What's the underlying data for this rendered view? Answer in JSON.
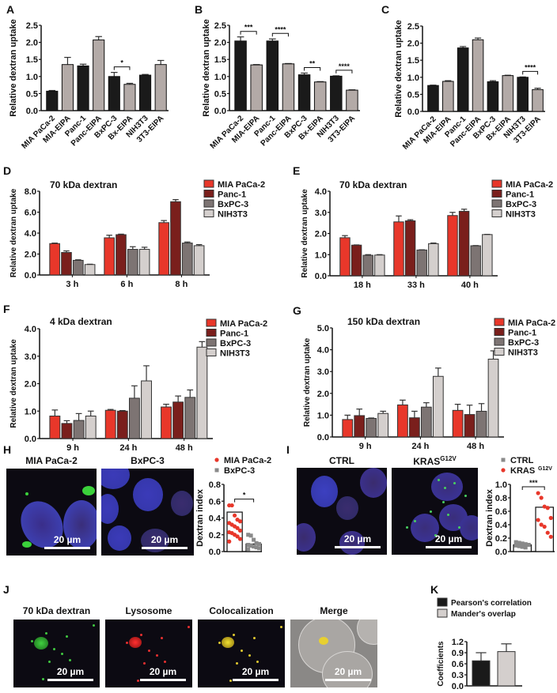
{
  "panel_labels": {
    "A": "A",
    "B": "B",
    "C": "C",
    "D": "D",
    "E": "E",
    "F": "F",
    "G": "G",
    "H": "H",
    "I": "I",
    "J": "J",
    "K": "K"
  },
  "colors": {
    "black": "#1a1a1a",
    "grey": "#b3aaa7",
    "mia": "#e8372a",
    "panc": "#7a1f1c",
    "bxpc": "#7d7473",
    "nih": "#d4cfcd",
    "dot_red": "#e8372a",
    "dot_grey": "#8a8a8a"
  },
  "micrographs": {
    "H": {
      "titles": [
        "MIA PaCa-2",
        "BxPC-3"
      ],
      "scale": "20 µm"
    },
    "I": {
      "titles": [
        "CTRL",
        "KRAS",
        "G12V"
      ],
      "scale": "20 µm"
    },
    "J": {
      "titles": [
        "70 kDa dextran",
        "Lysosome",
        "Colocalization",
        "Merge"
      ],
      "scale": "20 µm"
    }
  },
  "chart_data": [
    {
      "id": "A",
      "type": "bar",
      "ylabel": "Relative dextran uptake",
      "ylim": [
        0,
        2.5
      ],
      "yticks": [
        "0.0",
        "0.5",
        "1.0",
        "1.5",
        "2.0",
        "2.5"
      ],
      "categories": [
        "MIA PaCa-2",
        "MIA-EIPA",
        "Panc-1",
        "Panc-EIPA",
        "BxPC-3",
        "Bx-EIPA",
        "NIH3T3",
        "3T3-EIPA"
      ],
      "values": [
        0.57,
        1.35,
        1.31,
        2.07,
        1.0,
        0.77,
        1.04,
        1.35
      ],
      "errors": [
        0.02,
        0.21,
        0.05,
        0.1,
        0.12,
        0.03,
        0.02,
        0.12
      ],
      "significance": [
        {
          "between": [
            4,
            5
          ],
          "label": "*"
        }
      ]
    },
    {
      "id": "B",
      "type": "bar",
      "ylabel": "Relative dextran uptake",
      "ylim": [
        0,
        2.5
      ],
      "yticks": [
        "0.0",
        "0.5",
        "1.0",
        "1.5",
        "2.0",
        "2.5"
      ],
      "categories": [
        "MIA PaCa-2",
        "MIA-EIPA",
        "Panc-1",
        "Panc-EIPA",
        "BxPC-3",
        "Bx-EIPA",
        "NIH3T3",
        "3T3-EIPA"
      ],
      "values": [
        2.04,
        1.34,
        2.04,
        1.37,
        1.05,
        0.84,
        1.01,
        0.6
      ],
      "errors": [
        0.12,
        0.01,
        0.06,
        0.01,
        0.05,
        0.01,
        0.01,
        0.01
      ],
      "significance": [
        {
          "between": [
            0,
            1
          ],
          "label": "***"
        },
        {
          "between": [
            2,
            3
          ],
          "label": "****"
        },
        {
          "between": [
            4,
            5
          ],
          "label": "**"
        },
        {
          "between": [
            6,
            7
          ],
          "label": "****"
        }
      ]
    },
    {
      "id": "C",
      "type": "bar",
      "ylabel": "Relative dextran uptake",
      "ylim": [
        0,
        2.5
      ],
      "yticks": [
        "0.0",
        "0.5",
        "1.0",
        "1.5",
        "2.0",
        "2.5"
      ],
      "categories": [
        "MIA PaCa-2",
        "MIA-EIPA",
        "Panc-1",
        "Panc-EIPA",
        "BxPC-3",
        "Bx-EIPA",
        "NIH3T3",
        "3T3-EIPA"
      ],
      "values": [
        0.76,
        0.88,
        1.86,
        2.1,
        0.87,
        1.05,
        1.0,
        0.64
      ],
      "errors": [
        0.01,
        0.02,
        0.04,
        0.05,
        0.03,
        0.01,
        0.01,
        0.04
      ],
      "significance": [
        {
          "between": [
            6,
            7
          ],
          "label": "****"
        }
      ]
    },
    {
      "id": "D",
      "type": "bar",
      "title": "70 kDa dextran",
      "ylabel": "Relative dextran uptake",
      "ylim": [
        0,
        8
      ],
      "yticks": [
        "0.0",
        "2.0",
        "4.0",
        "6.0",
        "8.0"
      ],
      "categories": [
        "3 h",
        "6 h",
        "8 h"
      ],
      "legend": "right",
      "series": [
        {
          "name": "MIA PaCa-2",
          "values": [
            3.0,
            3.55,
            5.0
          ],
          "errors": [
            0.05,
            0.25,
            0.2
          ]
        },
        {
          "name": "Panc-1",
          "values": [
            2.15,
            3.85,
            7.0
          ],
          "errors": [
            0.15,
            0.05,
            0.2
          ]
        },
        {
          "name": "BxPC-3",
          "values": [
            1.4,
            2.45,
            3.05
          ],
          "errors": [
            0.05,
            0.25,
            0.1
          ]
        },
        {
          "name": "NIH3T3",
          "values": [
            1.0,
            2.45,
            2.8
          ],
          "errors": [
            0.03,
            0.2,
            0.1
          ]
        }
      ]
    },
    {
      "id": "E",
      "type": "bar",
      "title": "70 kDa dextran",
      "ylabel": "Relative dextran uptake",
      "ylim": [
        0,
        4
      ],
      "yticks": [
        "0.0",
        "1.0",
        "2.0",
        "3.0",
        "4.0"
      ],
      "categories": [
        "18 h",
        "33 h",
        "40 h"
      ],
      "legend": "right",
      "series": [
        {
          "name": "MIA PaCa-2",
          "values": [
            1.8,
            2.55,
            2.85
          ],
          "errors": [
            0.1,
            0.28,
            0.15
          ]
        },
        {
          "name": "Panc-1",
          "values": [
            1.45,
            2.6,
            3.05
          ],
          "errors": [
            0.01,
            0.05,
            0.1
          ]
        },
        {
          "name": "BxPC-3",
          "values": [
            0.97,
            1.22,
            1.42
          ],
          "errors": [
            0.03,
            0.01,
            0.01
          ]
        },
        {
          "name": "NIH3T3",
          "values": [
            0.98,
            1.52,
            1.95
          ],
          "errors": [
            0.02,
            0.03,
            0.01
          ]
        }
      ]
    },
    {
      "id": "F",
      "type": "bar",
      "title": "4 kDa dextran",
      "ylabel": "Relative dextran uptake",
      "ylim": [
        0,
        4
      ],
      "yticks": [
        "0.0",
        "1.0",
        "2.0",
        "3.0",
        "4.0"
      ],
      "categories": [
        "9 h",
        "24 h",
        "48 h"
      ],
      "legend": "right",
      "series": [
        {
          "name": "MIA PaCa-2",
          "values": [
            0.82,
            1.03,
            1.15
          ],
          "errors": [
            0.22,
            0.03,
            0.1
          ]
        },
        {
          "name": "Panc-1",
          "values": [
            0.55,
            1.0,
            1.33
          ],
          "errors": [
            0.1,
            0.02,
            0.22
          ]
        },
        {
          "name": "BxPC-3",
          "values": [
            0.66,
            1.47,
            1.5
          ],
          "errors": [
            0.25,
            0.45,
            0.27
          ]
        },
        {
          "name": "NIH3T3",
          "values": [
            0.82,
            2.1,
            3.33
          ],
          "errors": [
            0.18,
            0.55,
            0.2
          ]
        }
      ]
    },
    {
      "id": "G",
      "type": "bar",
      "title": "150 kDa dextran",
      "ylabel": "Relative dextran uptake",
      "ylim": [
        0,
        5
      ],
      "yticks": [
        "0.0",
        "1.0",
        "2.0",
        "3.0",
        "4.0",
        "5.0"
      ],
      "categories": [
        "9 h",
        "24 h",
        "48 h"
      ],
      "legend": "right",
      "series": [
        {
          "name": "MIA PaCa-2",
          "values": [
            0.8,
            1.47,
            1.22
          ],
          "errors": [
            0.2,
            0.22,
            0.28
          ]
        },
        {
          "name": "Panc-1",
          "values": [
            0.98,
            0.88,
            1.03
          ],
          "errors": [
            0.3,
            0.3,
            0.43
          ]
        },
        {
          "name": "BxPC-3",
          "values": [
            0.85,
            1.37,
            1.18
          ],
          "errors": [
            0.02,
            0.2,
            0.35
          ]
        },
        {
          "name": "NIH3T3",
          "values": [
            1.08,
            2.78,
            3.57
          ],
          "errors": [
            0.1,
            0.38,
            0.38
          ]
        }
      ]
    },
    {
      "id": "H",
      "type": "scatter",
      "ylabel": "Dextran index",
      "ylim": [
        0,
        0.8
      ],
      "yticks": [
        "0.0",
        "0.2",
        "0.4",
        "0.6",
        "0.8"
      ],
      "series": [
        {
          "name": "MIA PaCa-2",
          "marker": "circle",
          "bar": 0.47,
          "points": [
            0.55,
            0.55,
            0.43,
            0.38,
            0.36,
            0.34,
            0.32,
            0.3,
            0.28,
            0.25,
            0.23,
            0.22,
            0.2,
            0.18,
            0.15,
            0.12
          ]
        },
        {
          "name": "BxPC-3",
          "marker": "square",
          "bar": 0.09,
          "points": [
            0.2,
            0.19,
            0.14,
            0.1,
            0.09,
            0.08,
            0.07,
            0.06,
            0.05,
            0.04,
            0.03
          ]
        }
      ],
      "significance": [
        {
          "between": [
            0,
            1
          ],
          "label": "*"
        }
      ]
    },
    {
      "id": "I",
      "type": "scatter",
      "ylabel": "Dextran index",
      "ylim": [
        0,
        1.0
      ],
      "yticks": [
        "0.0",
        "0.2",
        "0.4",
        "0.6",
        "0.8",
        "1.0"
      ],
      "series": [
        {
          "name": "CTRL",
          "marker": "square",
          "bar": 0.1,
          "points": [
            0.14,
            0.13,
            0.12,
            0.11,
            0.1,
            0.09,
            0.08,
            0.07,
            0.06
          ]
        },
        {
          "name": "KRAS",
          "name_sup": "G12V",
          "marker": "circle",
          "bar": 0.66,
          "points": [
            0.87,
            0.8,
            0.67,
            0.65,
            0.5,
            0.47,
            0.4,
            0.37,
            0.28,
            0.22
          ]
        }
      ],
      "significance": [
        {
          "between": [
            0,
            1
          ],
          "label": "***"
        }
      ]
    },
    {
      "id": "K",
      "type": "bar",
      "ylabel": "Coefficients",
      "ylim": [
        0,
        1.2
      ],
      "yticks": [
        "0.0",
        "0.3",
        "0.6",
        "0.9",
        "1.2"
      ],
      "legend": "top",
      "series": [
        {
          "name": "Pearson's correlation",
          "values": [
            0.68
          ],
          "errors": [
            0.22
          ]
        },
        {
          "name": "Mander's overlap",
          "values": [
            0.93
          ],
          "errors": [
            0.21
          ]
        }
      ]
    }
  ]
}
